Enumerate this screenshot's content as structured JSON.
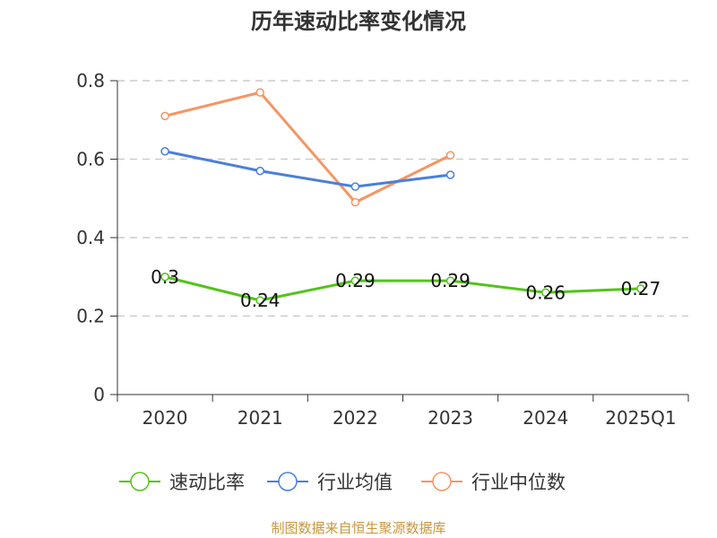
{
  "chart_data": {
    "type": "line",
    "title": "历年速动比率变化情况",
    "categories": [
      "2020",
      "2021",
      "2022",
      "2023",
      "2024",
      "2025Q1"
    ],
    "ylim": [
      0,
      0.8
    ],
    "yticks": [
      "0",
      "0.2",
      "0.4",
      "0.6",
      "0.8"
    ],
    "grid": true,
    "legend_position": "bottom",
    "series": [
      {
        "name": "速动比率",
        "color": "#52c41a",
        "values": [
          0.3,
          0.24,
          0.29,
          0.29,
          0.26,
          0.27
        ],
        "labels": [
          "0.3",
          "0.24",
          "0.29",
          "0.29",
          "0.26",
          "0.27"
        ]
      },
      {
        "name": "行业均值",
        "color": "#4a7fdc",
        "values": [
          0.62,
          0.57,
          0.53,
          0.56,
          null,
          null
        ]
      },
      {
        "name": "行业中位数",
        "color": "#f59563",
        "values": [
          0.71,
          0.77,
          0.49,
          0.61,
          null,
          null
        ]
      }
    ],
    "source": "制图数据来自恒生聚源数据库"
  }
}
